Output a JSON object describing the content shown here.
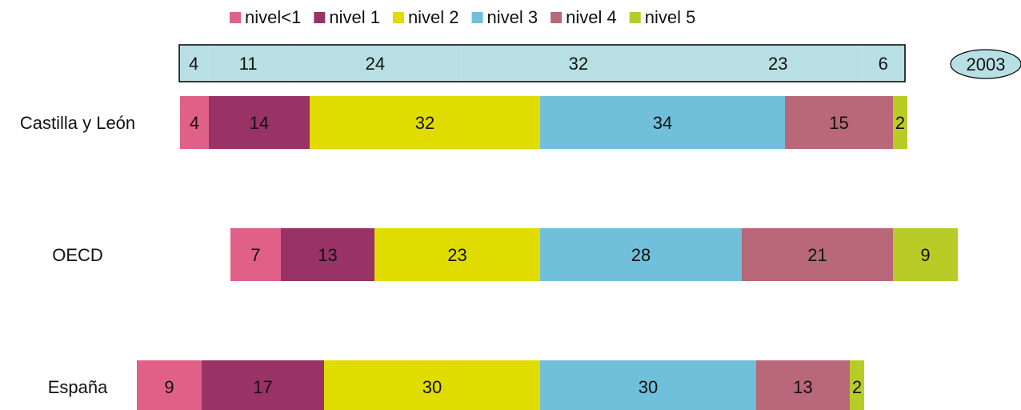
{
  "chart_data": {
    "type": "bar",
    "orientation": "horizontal",
    "stacked": true,
    "diverging_from_series": 3,
    "categories": [
      "Castilla y León",
      "OECD",
      "España"
    ],
    "series": [
      {
        "name": "nivel<1",
        "color": "#e06088",
        "values": [
          4,
          7,
          9
        ]
      },
      {
        "name": "nivel 1",
        "color": "#993366",
        "values": [
          14,
          13,
          17
        ]
      },
      {
        "name": "nivel 2",
        "color": "#e0dc00",
        "values": [
          32,
          23,
          30
        ]
      },
      {
        "name": "nivel 3",
        "color": "#70c0dc",
        "values": [
          34,
          28,
          30
        ]
      },
      {
        "name": "nivel 4",
        "color": "#b86878",
        "values": [
          15,
          21,
          13
        ]
      },
      {
        "name": "nivel 5",
        "color": "#b8cc28",
        "values": [
          2,
          9,
          2
        ]
      }
    ],
    "reference": {
      "label": "2003",
      "color": "#b8e0e4",
      "values": [
        4,
        11,
        24,
        32,
        23,
        6
      ]
    },
    "legend": "top"
  }
}
